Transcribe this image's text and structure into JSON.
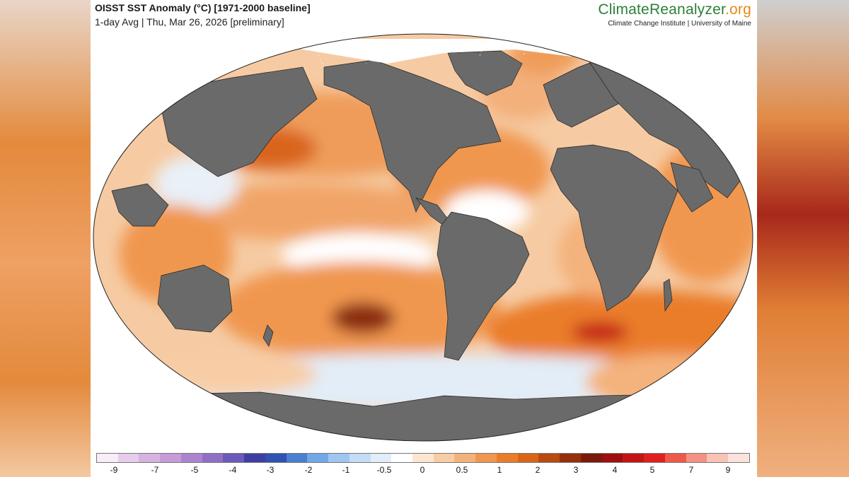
{
  "header": {
    "title": "OISST SST Anomaly (°C) [1971-2000 baseline]",
    "subtitle": "1-day Avg | Thu, Mar 26, 2026 [preliminary]",
    "brand_part1": "Climate",
    "brand_part2": "Reanalyzer",
    "brand_part3": ".org",
    "brand_sub": "Climate Change Institute | University of Maine"
  },
  "colorbar": {
    "colors": [
      "#f7eef7",
      "#e6cdea",
      "#d6b2e0",
      "#c79ad8",
      "#ab83cf",
      "#8f6fc6",
      "#6b5ab7",
      "#3f3fa3",
      "#2f52b3",
      "#4a7fd0",
      "#73a8e8",
      "#9fc6f0",
      "#c4dcf5",
      "#e2edf8",
      "#ffffff",
      "#fbe6d2",
      "#f8cda6",
      "#f4b27b",
      "#f0974f",
      "#ea7d2a",
      "#d9651a",
      "#b84b12",
      "#952f0c",
      "#7a1a0a",
      "#9e0f0f",
      "#c21616",
      "#e02020",
      "#ec5a4a",
      "#f39282",
      "#f8c3b6",
      "#fbe2db"
    ],
    "ticks": [
      "-9",
      "-7",
      "-5",
      "-4",
      "-3",
      "-2",
      "-1",
      "-0.5",
      "0",
      "0.5",
      "1",
      "2",
      "3",
      "4",
      "5",
      "7",
      "9"
    ]
  }
}
